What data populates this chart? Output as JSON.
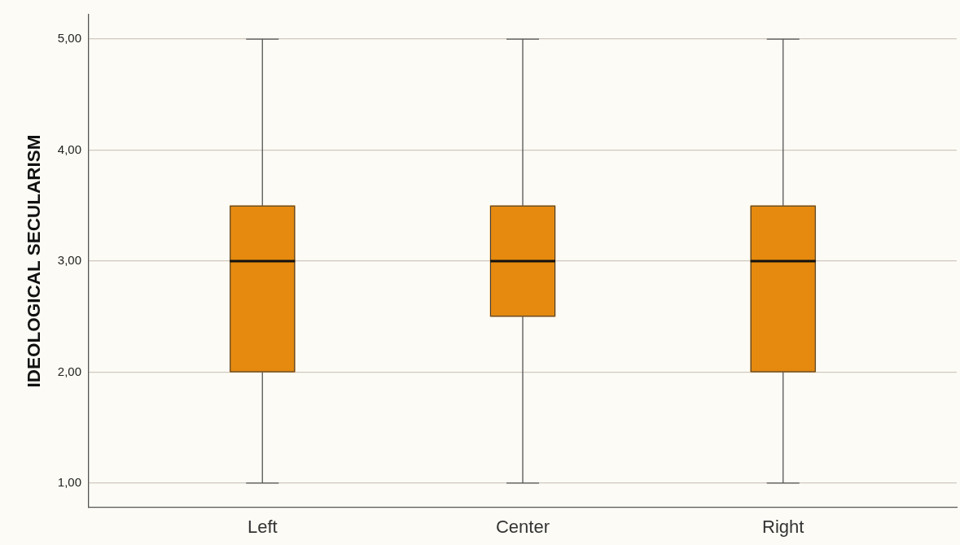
{
  "chart_data": {
    "type": "box",
    "ylabel": "IDEOLOGICAL SECULARISM",
    "categories": [
      "Left",
      "Center",
      "Right"
    ],
    "boxes": [
      {
        "low": 1,
        "q1": 2,
        "median": 3,
        "q3": 3.5,
        "high": 5
      },
      {
        "low": 1,
        "q1": 2.5,
        "median": 3,
        "q3": 3.5,
        "high": 5
      },
      {
        "low": 1,
        "q1": 2,
        "median": 3,
        "q3": 3.5,
        "high": 5
      }
    ],
    "color": "#e58a0f",
    "ylim": [
      0.78,
      5.22
    ],
    "yticks": [
      {
        "value": 1,
        "label": "1,00"
      },
      {
        "value": 2,
        "label": "2,00"
      },
      {
        "value": 3,
        "label": "3,00"
      },
      {
        "value": 4,
        "label": "4,00"
      },
      {
        "value": 5,
        "label": "5,00"
      }
    ],
    "grid": "y"
  }
}
